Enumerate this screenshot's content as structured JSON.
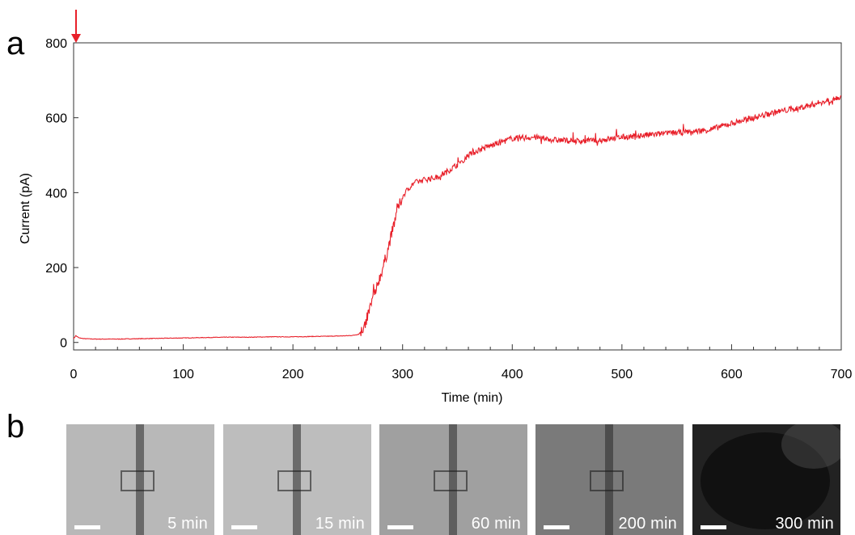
{
  "panels": {
    "a": "a",
    "b": "b"
  },
  "chart_data": {
    "type": "line",
    "title": "",
    "xlabel": "Time (min)",
    "ylabel": "Current (pA)",
    "xlim": [
      0,
      700
    ],
    "ylim": [
      -20,
      800
    ],
    "xticks": [
      0,
      100,
      200,
      300,
      400,
      500,
      600,
      700
    ],
    "yticks": [
      0,
      200,
      400,
      600,
      800
    ],
    "grid": false,
    "series": [
      {
        "color": "#e8202a",
        "x": [
          0,
          2,
          5,
          10,
          20,
          40,
          60,
          80,
          100,
          120,
          140,
          160,
          180,
          200,
          220,
          240,
          250,
          255,
          260,
          265,
          270,
          275,
          280,
          285,
          290,
          295,
          300,
          305,
          310,
          320,
          330,
          340,
          350,
          360,
          370,
          380,
          390,
          400,
          420,
          440,
          460,
          480,
          500,
          520,
          540,
          560,
          580,
          600,
          620,
          640,
          660,
          680,
          700
        ],
        "y": [
          10,
          18,
          12,
          10,
          9,
          9,
          10,
          11,
          12,
          13,
          14,
          14,
          15,
          15,
          16,
          17,
          18,
          19,
          22,
          40,
          90,
          140,
          180,
          230,
          290,
          350,
          390,
          410,
          425,
          435,
          440,
          455,
          475,
          500,
          515,
          525,
          535,
          545,
          548,
          540,
          538,
          540,
          548,
          553,
          558,
          562,
          568,
          585,
          600,
          615,
          625,
          640,
          655
        ]
      }
    ],
    "annotations": [
      {
        "type": "arrow",
        "x": 0,
        "y": 800,
        "color": "#e8202a"
      }
    ]
  },
  "frames": [
    {
      "label": "5 min",
      "bg": "#b8b8b8"
    },
    {
      "label": "15 min",
      "bg": "#bdbdbd"
    },
    {
      "label": "60 min",
      "bg": "#a0a0a0"
    },
    {
      "label": "200 min",
      "bg": "#7a7a7a"
    },
    {
      "label": "300 min",
      "bg": "#222222"
    }
  ]
}
